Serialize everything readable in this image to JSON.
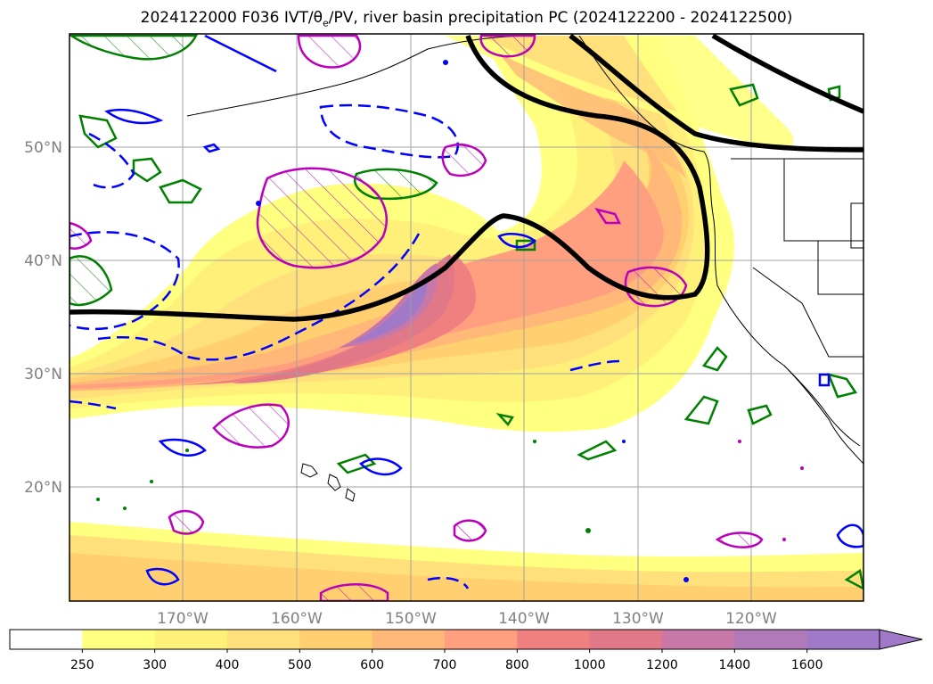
{
  "title": {
    "run": "2024122000 F036 IVT/",
    "theta": "θ",
    "theta_sub": "e",
    "rest": "/PV, river basin precipitation PC (2024122200 - 2024122500)"
  },
  "map": {
    "lat_labels": [
      "20°N",
      "30°N",
      "40°N",
      "50°N"
    ],
    "lon_labels": [
      "170°W",
      "160°W",
      "150°W",
      "140°W",
      "130°W",
      "120°W"
    ],
    "colors": {
      "ocean_bg": "#ffffff",
      "coast": "#000000",
      "jet": "#000000",
      "theta_pos": "#008000",
      "theta_neg": "#0000ff",
      "pv": "#bb00bb",
      "grid": "#a0a0a0"
    }
  },
  "colorbar": {
    "labels": [
      "250",
      "300",
      "400",
      "500",
      "600",
      "700",
      "800",
      "1000",
      "1200",
      "1400",
      "1600"
    ],
    "colors": [
      "#ffffff",
      "#ffff80",
      "#fff07a",
      "#ffe07a",
      "#ffcf70",
      "#ffb878",
      "#ff9f80",
      "#f08080",
      "#e07888",
      "#c878a8",
      "#b07ab8",
      "#a07ac8"
    ],
    "extend": "max"
  }
}
